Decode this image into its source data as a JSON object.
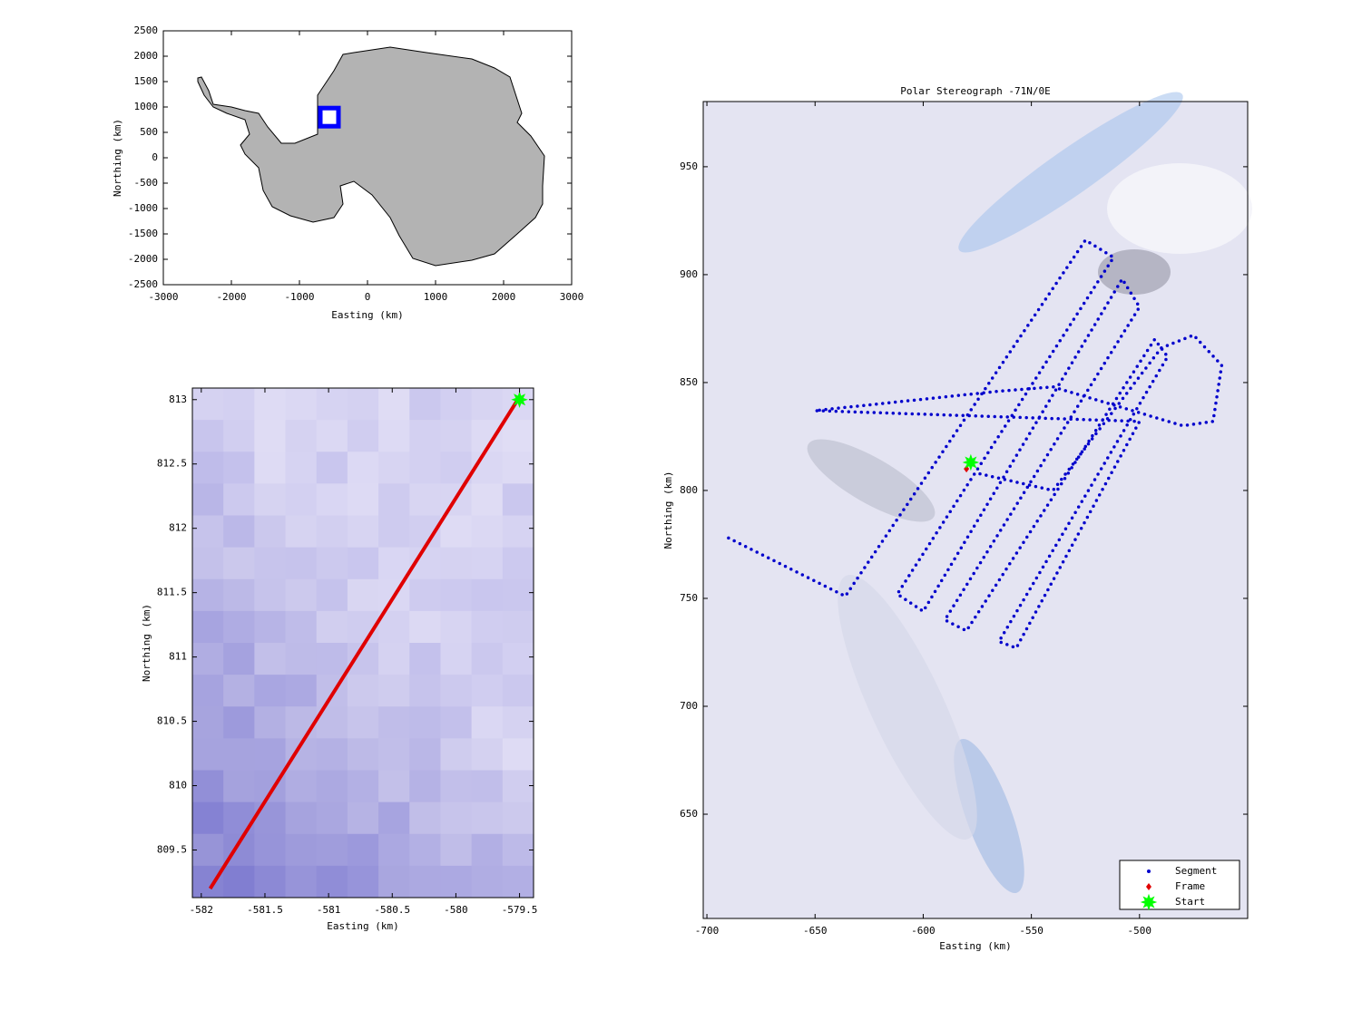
{
  "chart_data": [
    {
      "type": "map",
      "xlabel": "Easting (km)",
      "ylabel": "Northing (km)",
      "xlim": [
        -3000,
        3000
      ],
      "xticks": [
        -3000,
        -2000,
        -1000,
        0,
        1000,
        2000,
        3000
      ],
      "ylim": [
        -2500,
        2500
      ],
      "yticks": [
        -2500,
        -2000,
        -1500,
        -1000,
        -500,
        0,
        500,
        1000,
        1500,
        2000,
        2500
      ],
      "series": [
        {
          "style": "box",
          "color": "#0000ff",
          "x": [
            -560
          ],
          "values": [
            800
          ]
        }
      ]
    },
    {
      "type": "line",
      "xlabel": "Easting (km)",
      "ylabel": "Northing (km)",
      "xlim": [
        -582.07,
        -579.39
      ],
      "xticks": [
        -582,
        -581.5,
        -581,
        -580.5,
        -580,
        -579.5
      ],
      "ylim": [
        809.13,
        813.09
      ],
      "yticks": [
        809.5,
        810,
        810.5,
        811,
        811.5,
        812,
        812.5,
        813
      ],
      "series": [
        {
          "style": "line",
          "color": "#e00000",
          "x": [
            -581.93,
            -579.52
          ],
          "values": [
            809.2,
            812.99
          ]
        },
        {
          "style": "star",
          "color": "#00ff00",
          "x": [
            -579.5
          ],
          "values": [
            813
          ]
        }
      ]
    },
    {
      "type": "scatter",
      "title": "Polar Stereograph -71N/0E",
      "xlabel": "Easting (km)",
      "ylabel": "Northing (km)",
      "xlim": [
        -701.7,
        -450
      ],
      "xticks": [
        -700,
        -650,
        -600,
        -550,
        -500
      ],
      "ylim": [
        601.7,
        980.2
      ],
      "yticks": [
        650,
        700,
        750,
        800,
        850,
        900,
        950
      ],
      "legend": "lower right",
      "series": [
        {
          "name": "Segment",
          "style": "dots",
          "color": "#0000cc",
          "x": [
            -690,
            -636,
            -525,
            -512,
            -612,
            -600,
            -508,
            -500,
            -590,
            -580,
            -493,
            -487,
            -565,
            -557,
            -500,
            -650,
            -565,
            -540,
            -480,
            -466,
            -462,
            -475,
            -490,
            -540,
            -575
          ],
          "values": [
            778,
            751,
            916,
            908,
            752,
            744,
            898,
            885,
            740,
            735,
            870,
            862,
            730,
            727,
            832,
            837,
            846,
            848,
            830,
            832,
            858,
            872,
            866,
            800,
            808
          ]
        },
        {
          "name": "Frame",
          "style": "diamond",
          "color": "#e00000",
          "x": [
            -580
          ],
          "values": [
            810
          ]
        },
        {
          "name": "Start",
          "style": "star",
          "color": "#00ff00",
          "x": [
            -578
          ],
          "values": [
            813
          ]
        }
      ]
    }
  ]
}
